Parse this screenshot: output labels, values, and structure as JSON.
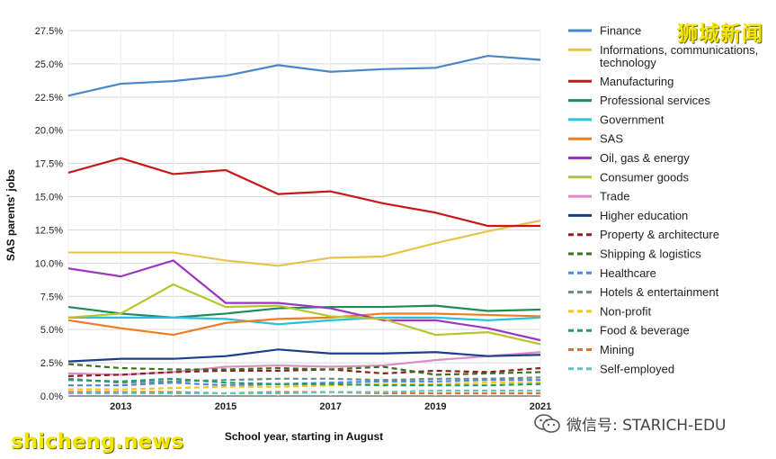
{
  "watermarks": {
    "top_right": "狮城新闻",
    "bottom_left": "shicheng.news",
    "wechat": "微信号: STARICH-EDU",
    "wechat_icon": "wechat-icon"
  },
  "chart_data": {
    "type": "line",
    "title": "",
    "xlabel": "School year, starting in August",
    "ylabel": "SAS parents' jobs",
    "x": [
      2012,
      2013,
      2014,
      2015,
      2016,
      2017,
      2018,
      2019,
      2020,
      2021
    ],
    "x_ticks": [
      "2013",
      "2015",
      "2017",
      "2019",
      "2021"
    ],
    "xlim": [
      2012,
      2021
    ],
    "ylim": [
      0,
      27.5
    ],
    "y_ticks": [
      "0.0%",
      "2.5%",
      "5.0%",
      "7.5%",
      "10.0%",
      "12.5%",
      "15.0%",
      "17.5%",
      "20.0%",
      "22.5%",
      "25.0%",
      "27.5%"
    ],
    "grid": "horizontal",
    "legend_position": "right",
    "series": [
      {
        "name": "Finance",
        "color": "#4a86c8",
        "dash": "solid",
        "values": [
          22.6,
          23.5,
          23.7,
          24.1,
          24.9,
          24.4,
          24.6,
          24.7,
          25.6,
          25.3
        ]
      },
      {
        "name": "Informations, communications, technology",
        "color": "#e8c34a",
        "dash": "solid",
        "values": [
          10.8,
          10.8,
          10.8,
          10.2,
          9.8,
          10.4,
          10.5,
          11.5,
          12.4,
          13.2
        ]
      },
      {
        "name": "Manufacturing",
        "color": "#c81818",
        "dash": "solid",
        "values": [
          16.8,
          17.9,
          16.7,
          17.0,
          15.2,
          15.4,
          14.5,
          13.8,
          12.8,
          12.8
        ]
      },
      {
        "name": "Professional services",
        "color": "#1e8c5a",
        "dash": "solid",
        "values": [
          6.7,
          6.2,
          5.9,
          6.2,
          6.6,
          6.7,
          6.7,
          6.8,
          6.4,
          6.5
        ]
      },
      {
        "name": "Government",
        "color": "#27c2dc",
        "dash": "solid",
        "values": [
          5.9,
          5.9,
          5.9,
          5.8,
          5.4,
          5.7,
          5.9,
          5.9,
          5.7,
          5.9
        ]
      },
      {
        "name": "SAS",
        "color": "#ee7d22",
        "dash": "solid",
        "values": [
          5.7,
          5.1,
          4.6,
          5.5,
          5.8,
          5.9,
          6.2,
          6.2,
          6.1,
          6.0
        ]
      },
      {
        "name": "Oil, gas & energy",
        "color": "#9c36c2",
        "dash": "solid",
        "values": [
          9.6,
          9.0,
          10.2,
          7.0,
          7.0,
          6.6,
          5.7,
          5.7,
          5.1,
          4.2
        ]
      },
      {
        "name": "Consumer goods",
        "color": "#b8c42c",
        "dash": "solid",
        "values": [
          5.9,
          6.2,
          8.4,
          6.7,
          6.8,
          6.0,
          5.8,
          4.6,
          4.8,
          3.9
        ]
      },
      {
        "name": "Trade",
        "color": "#dc8cc8",
        "dash": "solid",
        "values": [
          1.7,
          1.6,
          1.8,
          2.2,
          2.3,
          2.2,
          2.3,
          2.7,
          3.0,
          3.3
        ]
      },
      {
        "name": "Higher education",
        "color": "#1b3f8c",
        "dash": "solid",
        "values": [
          2.6,
          2.8,
          2.8,
          3.0,
          3.5,
          3.2,
          3.2,
          3.3,
          3.0,
          3.1
        ]
      },
      {
        "name": "Property & architecture",
        "color": "#8c1e1e",
        "dash": "dashed",
        "values": [
          1.5,
          1.6,
          1.8,
          1.9,
          1.9,
          2.0,
          1.7,
          1.9,
          1.8,
          2.1
        ]
      },
      {
        "name": "Shipping & logistics",
        "color": "#3d6e1e",
        "dash": "dashed",
        "values": [
          2.4,
          2.1,
          2.0,
          2.0,
          2.1,
          2.0,
          2.2,
          1.6,
          1.7,
          1.8
        ]
      },
      {
        "name": "Healthcare",
        "color": "#4a86e8",
        "dash": "dashed",
        "values": [
          0.8,
          0.8,
          1.0,
          0.8,
          0.9,
          1.0,
          1.1,
          1.1,
          1.2,
          1.2
        ]
      },
      {
        "name": "Hotels & entertainment",
        "color": "#6a8a8a",
        "dash": "dashed",
        "values": [
          1.3,
          1.0,
          1.1,
          1.2,
          1.3,
          1.3,
          1.2,
          1.3,
          1.3,
          1.4
        ]
      },
      {
        "name": "Non-profit",
        "color": "#f5c518",
        "dash": "dashed",
        "values": [
          0.5,
          0.5,
          0.6,
          0.7,
          0.7,
          0.8,
          0.9,
          0.9,
          1.0,
          1.0
        ]
      },
      {
        "name": "Food & beverage",
        "color": "#1e9c6e",
        "dash": "dashed",
        "values": [
          1.2,
          1.1,
          1.3,
          1.0,
          0.9,
          0.9,
          0.8,
          0.8,
          0.8,
          0.9
        ]
      },
      {
        "name": "Mining",
        "color": "#e8711e",
        "dash": "dashed",
        "values": [
          0.3,
          0.3,
          0.3,
          0.2,
          0.3,
          0.3,
          0.2,
          0.2,
          0.2,
          0.2
        ]
      },
      {
        "name": "Self-employed",
        "color": "#5ec4c4",
        "dash": "dashed",
        "values": [
          0.2,
          0.2,
          0.2,
          0.2,
          0.2,
          0.3,
          0.3,
          0.4,
          0.4,
          0.4
        ]
      }
    ]
  }
}
